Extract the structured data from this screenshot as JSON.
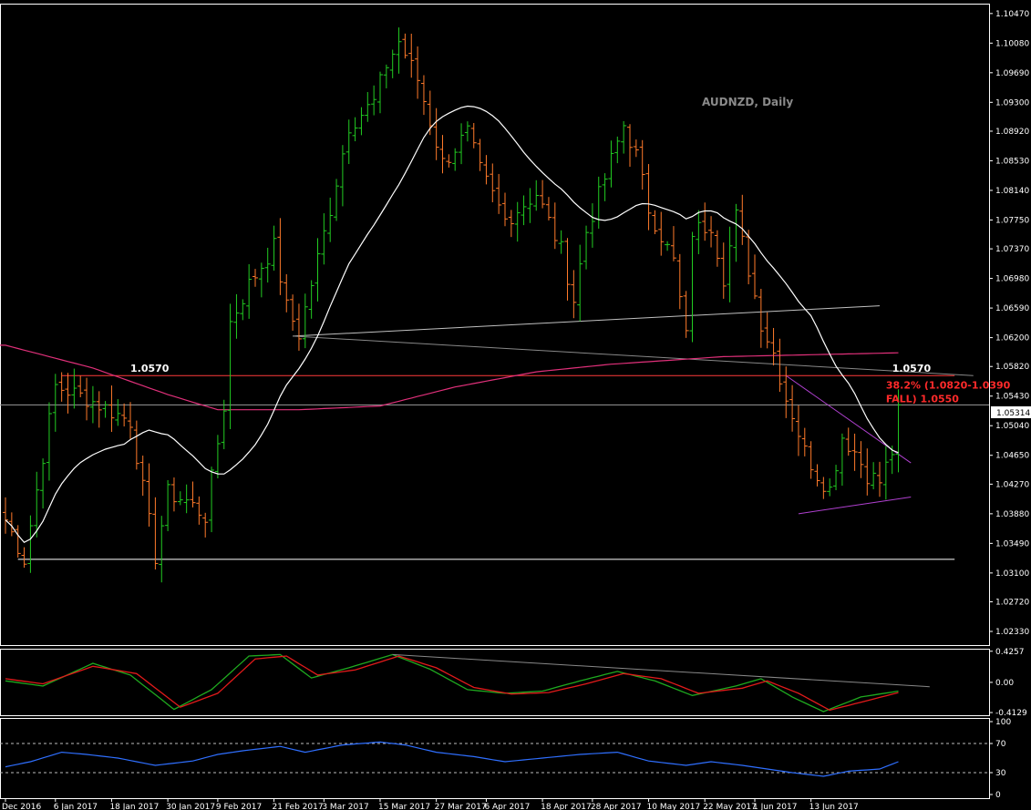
{
  "chart_data": [
    {
      "type": "ohlc",
      "title": "AUDNZD, Daily",
      "symbol": "AUDNZD",
      "timeframe": "Daily",
      "ylim": [
        1.0215,
        1.106
      ],
      "y_tick_labels": [
        "1.10470",
        "1.10080",
        "1.09690",
        "1.09300",
        "1.08920",
        "1.08530",
        "1.08140",
        "1.07750",
        "1.07370",
        "1.06980",
        "1.06590",
        "1.06200",
        "1.05820",
        "1.05430",
        "1.05040",
        "1.04650",
        "1.04270",
        "1.03880",
        "1.03490",
        "1.03100",
        "1.02720",
        "1.02330"
      ],
      "y_ticks": [
        1.1047,
        1.1008,
        1.0969,
        1.093,
        1.0892,
        1.0853,
        1.0814,
        1.0775,
        1.0737,
        1.0698,
        1.0659,
        1.062,
        1.0582,
        1.0543,
        1.0504,
        1.0465,
        1.0427,
        1.0388,
        1.0349,
        1.031,
        1.0272,
        1.0233
      ],
      "x_tick_labels": [
        "Dec 2016",
        "6 Jan 2017",
        "18 Jan 2017",
        "30 Jan 2017",
        "9 Feb 2017",
        "21 Feb 2017",
        "3 Mar 2017",
        "15 Mar 2017",
        "27 Mar 2017",
        "6 Apr 2017",
        "18 Apr 2017",
        "28 Apr 2017",
        "10 May 2017",
        "22 May 2017",
        "1 Jun 2017",
        "13 Jun 2017"
      ],
      "x_tick_index": [
        0,
        8,
        17,
        26,
        34,
        43,
        51,
        60,
        69,
        77,
        86,
        94,
        103,
        112,
        120,
        129
      ],
      "current_price": 1.05314,
      "current_price_label": "1.05314",
      "bar_up_color": "#22cc22",
      "bar_down_color": "#ff7a2a",
      "key_points": [
        {
          "x": 0,
          "y": 1.038
        },
        {
          "x": 3,
          "y": 1.0328
        },
        {
          "x": 8,
          "y": 1.0556
        },
        {
          "x": 13,
          "y": 1.054
        },
        {
          "x": 20,
          "y": 1.051
        },
        {
          "x": 24,
          "y": 1.0332
        },
        {
          "x": 26,
          "y": 1.0415
        },
        {
          "x": 29,
          "y": 1.0405
        },
        {
          "x": 32,
          "y": 1.0385
        },
        {
          "x": 35,
          "y": 1.053
        },
        {
          "x": 36,
          "y": 1.064
        },
        {
          "x": 39,
          "y": 1.069
        },
        {
          "x": 43,
          "y": 1.074
        },
        {
          "x": 45,
          "y": 1.066
        },
        {
          "x": 47,
          "y": 1.0625
        },
        {
          "x": 52,
          "y": 1.079
        },
        {
          "x": 55,
          "y": 1.09
        },
        {
          "x": 59,
          "y": 1.093
        },
        {
          "x": 61,
          "y": 1.098
        },
        {
          "x": 63,
          "y": 1.101
        },
        {
          "x": 66,
          "y": 1.096
        },
        {
          "x": 70,
          "y": 1.085
        },
        {
          "x": 74,
          "y": 1.089
        },
        {
          "x": 76,
          "y": 1.084
        },
        {
          "x": 80,
          "y": 1.0775
        },
        {
          "x": 85,
          "y": 1.081
        },
        {
          "x": 89,
          "y": 1.0735
        },
        {
          "x": 91,
          "y": 1.067
        },
        {
          "x": 93,
          "y": 1.076
        },
        {
          "x": 96,
          "y": 1.083
        },
        {
          "x": 99,
          "y": 1.09
        },
        {
          "x": 101,
          "y": 1.086
        },
        {
          "x": 103,
          "y": 1.079
        },
        {
          "x": 107,
          "y": 1.072
        },
        {
          "x": 109,
          "y": 1.062
        },
        {
          "x": 110,
          "y": 1.076
        },
        {
          "x": 113,
          "y": 1.077
        },
        {
          "x": 115,
          "y": 1.07
        },
        {
          "x": 117,
          "y": 1.078
        },
        {
          "x": 119,
          "y": 1.071
        },
        {
          "x": 121,
          "y": 1.064
        },
        {
          "x": 123,
          "y": 1.06
        },
        {
          "x": 125,
          "y": 1.054
        },
        {
          "x": 126,
          "y": 1.052
        },
        {
          "x": 128,
          "y": 1.047
        },
        {
          "x": 130,
          "y": 1.044
        },
        {
          "x": 132,
          "y": 1.042
        },
        {
          "x": 134,
          "y": 1.049
        },
        {
          "x": 136,
          "y": 1.047
        },
        {
          "x": 138,
          "y": 1.044
        },
        {
          "x": 140,
          "y": 1.043
        },
        {
          "x": 142,
          "y": 1.047
        },
        {
          "x": 143,
          "y": 1.0531
        }
      ],
      "ma_fast_color": "#ffffff",
      "ma_slow_color": "#e0307a",
      "ma_slow_points": [
        {
          "x": 0,
          "y": 1.061
        },
        {
          "x": 14,
          "y": 1.058
        },
        {
          "x": 26,
          "y": 1.0545
        },
        {
          "x": 34,
          "y": 1.0525
        },
        {
          "x": 47,
          "y": 1.0525
        },
        {
          "x": 60,
          "y": 1.053
        },
        {
          "x": 72,
          "y": 1.0555
        },
        {
          "x": 85,
          "y": 1.0575
        },
        {
          "x": 97,
          "y": 1.0585
        },
        {
          "x": 115,
          "y": 1.0595
        },
        {
          "x": 143,
          "y": 1.06
        }
      ],
      "horizontal_lines": [
        {
          "y": 1.057,
          "color": "#ff3b3b"
        },
        {
          "y": 1.0328,
          "color": "#ffffff"
        }
      ],
      "trendlines": [
        {
          "x1": 46,
          "y1": 1.0622,
          "x2": 140,
          "y2": 1.0662,
          "color": "#c0c0c0"
        },
        {
          "x1": 46,
          "y1": 1.0622,
          "x2": 155,
          "y2": 1.057,
          "color": "#888888"
        },
        {
          "x1": 125,
          "y1": 1.057,
          "x2": 145,
          "y2": 1.0455,
          "color": "#b040d0"
        },
        {
          "x1": 127,
          "y1": 1.0388,
          "x2": 145,
          "y2": 1.041,
          "color": "#b040d0"
        }
      ],
      "annotations": [
        {
          "text": "1.0570",
          "x": 20,
          "y": 1.057,
          "color": "#ffffff"
        },
        {
          "text": "1.0570",
          "x": 142,
          "y": 1.057,
          "color": "#ffffff"
        },
        {
          "text": "38.2% (1.0820-1.0390",
          "x": 141,
          "y": 1.0553,
          "color": "#ff2a2a"
        },
        {
          "text": "FALL)  1.0550",
          "x": 141,
          "y": 1.0535,
          "color": "#ff2a2a"
        }
      ]
    },
    {
      "type": "line",
      "indicator": "oscillator",
      "ylim": [
        -0.45,
        0.46
      ],
      "y_tick_labels": [
        "0.4257",
        "0.00",
        "-0.4129"
      ],
      "y_ticks": [
        0.4257,
        0.0,
        -0.4129
      ],
      "series": [
        {
          "color": "#e21a1a",
          "role": "signal"
        },
        {
          "color": "#1faa1f",
          "role": "main"
        }
      ],
      "main_points": [
        {
          "x": 0,
          "y": 0.02
        },
        {
          "x": 6,
          "y": -0.05
        },
        {
          "x": 14,
          "y": 0.26
        },
        {
          "x": 20,
          "y": 0.1
        },
        {
          "x": 27,
          "y": -0.37
        },
        {
          "x": 33,
          "y": -0.1
        },
        {
          "x": 39,
          "y": 0.36
        },
        {
          "x": 44,
          "y": 0.38
        },
        {
          "x": 49,
          "y": 0.06
        },
        {
          "x": 55,
          "y": 0.2
        },
        {
          "x": 62,
          "y": 0.38
        },
        {
          "x": 68,
          "y": 0.18
        },
        {
          "x": 74,
          "y": -0.1
        },
        {
          "x": 80,
          "y": -0.15
        },
        {
          "x": 86,
          "y": -0.12
        },
        {
          "x": 92,
          "y": 0.02
        },
        {
          "x": 98,
          "y": 0.15
        },
        {
          "x": 104,
          "y": 0.02
        },
        {
          "x": 110,
          "y": -0.18
        },
        {
          "x": 117,
          "y": -0.05
        },
        {
          "x": 121,
          "y": 0.05
        },
        {
          "x": 126,
          "y": -0.2
        },
        {
          "x": 131,
          "y": -0.4
        },
        {
          "x": 137,
          "y": -0.2
        },
        {
          "x": 143,
          "y": -0.12
        }
      ],
      "signal_points": [
        {
          "x": 0,
          "y": 0.05
        },
        {
          "x": 6,
          "y": -0.02
        },
        {
          "x": 14,
          "y": 0.22
        },
        {
          "x": 21,
          "y": 0.12
        },
        {
          "x": 28,
          "y": -0.34
        },
        {
          "x": 34,
          "y": -0.15
        },
        {
          "x": 40,
          "y": 0.32
        },
        {
          "x": 45,
          "y": 0.36
        },
        {
          "x": 50,
          "y": 0.1
        },
        {
          "x": 56,
          "y": 0.17
        },
        {
          "x": 63,
          "y": 0.36
        },
        {
          "x": 69,
          "y": 0.2
        },
        {
          "x": 75,
          "y": -0.07
        },
        {
          "x": 81,
          "y": -0.16
        },
        {
          "x": 87,
          "y": -0.14
        },
        {
          "x": 93,
          "y": -0.02
        },
        {
          "x": 99,
          "y": 0.12
        },
        {
          "x": 105,
          "y": 0.05
        },
        {
          "x": 111,
          "y": -0.15
        },
        {
          "x": 118,
          "y": -0.08
        },
        {
          "x": 122,
          "y": 0.02
        },
        {
          "x": 127,
          "y": -0.15
        },
        {
          "x": 132,
          "y": -0.38
        },
        {
          "x": 138,
          "y": -0.25
        },
        {
          "x": 143,
          "y": -0.14
        }
      ],
      "trendline": {
        "x1": 62,
        "y1": 0.38,
        "x2": 148,
        "y2": -0.06,
        "color": "#888888"
      }
    },
    {
      "type": "line",
      "indicator": "rsi",
      "ylim": [
        0,
        100
      ],
      "y_tick_labels": [
        "100",
        "70",
        "30",
        "0"
      ],
      "y_ticks": [
        100,
        70,
        30,
        0
      ],
      "levels": [
        70,
        30
      ],
      "series": [
        {
          "color": "#2f6fff",
          "role": "rsi"
        }
      ],
      "points": [
        {
          "x": 0,
          "y": 38
        },
        {
          "x": 4,
          "y": 45
        },
        {
          "x": 9,
          "y": 58
        },
        {
          "x": 13,
          "y": 55
        },
        {
          "x": 18,
          "y": 50
        },
        {
          "x": 24,
          "y": 40
        },
        {
          "x": 30,
          "y": 46
        },
        {
          "x": 34,
          "y": 55
        },
        {
          "x": 38,
          "y": 60
        },
        {
          "x": 44,
          "y": 66
        },
        {
          "x": 48,
          "y": 58
        },
        {
          "x": 54,
          "y": 68
        },
        {
          "x": 60,
          "y": 72
        },
        {
          "x": 64,
          "y": 68
        },
        {
          "x": 69,
          "y": 58
        },
        {
          "x": 75,
          "y": 52
        },
        {
          "x": 80,
          "y": 45
        },
        {
          "x": 86,
          "y": 50
        },
        {
          "x": 92,
          "y": 55
        },
        {
          "x": 98,
          "y": 58
        },
        {
          "x": 103,
          "y": 46
        },
        {
          "x": 109,
          "y": 40
        },
        {
          "x": 113,
          "y": 45
        },
        {
          "x": 118,
          "y": 40
        },
        {
          "x": 122,
          "y": 35
        },
        {
          "x": 126,
          "y": 30
        },
        {
          "x": 131,
          "y": 25
        },
        {
          "x": 135,
          "y": 32
        },
        {
          "x": 140,
          "y": 35
        },
        {
          "x": 143,
          "y": 45
        }
      ]
    }
  ]
}
